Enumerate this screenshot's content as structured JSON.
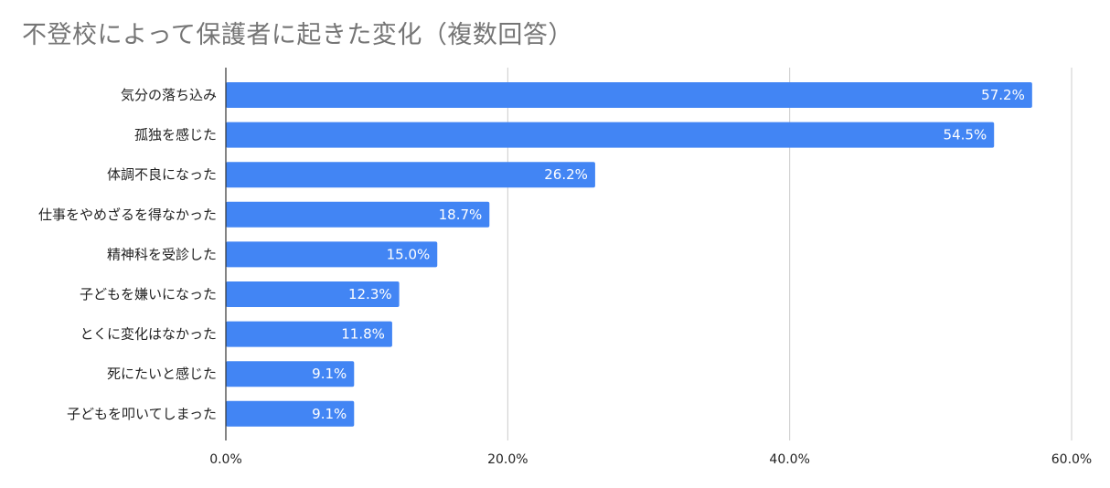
{
  "chart_data": {
    "type": "bar",
    "orientation": "horizontal",
    "title": "不登校によって保護者に起きた変化（複数回答）",
    "categories": [
      "気分の落ち込み",
      "孤独を感じた",
      "体調不良になった",
      "仕事をやめざるを得なかった",
      "精神科を受診した",
      "子どもを嫌いになった",
      "とくに変化はなかった",
      "死にたいと感じた",
      "子どもを叩いてしまった"
    ],
    "values": [
      57.2,
      54.5,
      26.2,
      18.7,
      15.0,
      12.3,
      11.8,
      9.1,
      9.1
    ],
    "value_labels": [
      "57.2%",
      "54.5%",
      "26.2%",
      "18.7%",
      "15.0%",
      "12.3%",
      "11.8%",
      "9.1%",
      "9.1%"
    ],
    "xlim": [
      0,
      60
    ],
    "xticks": [
      0,
      20,
      40,
      60
    ],
    "xtick_labels": [
      "0.0%",
      "20.0%",
      "40.0%",
      "60.0%"
    ],
    "xlabel": "",
    "ylabel": "",
    "grid": true,
    "legend": "none",
    "colors": {
      "bar": "#4285f4",
      "grid": "#cccccc",
      "axis": "#333333",
      "title": "#757575"
    }
  }
}
